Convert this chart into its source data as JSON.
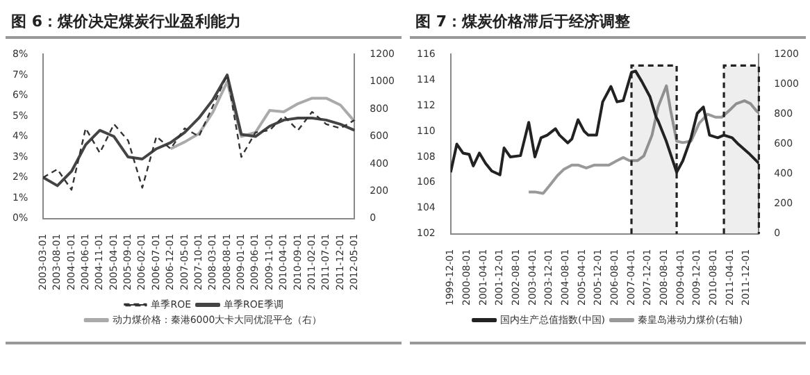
{
  "chart_data": [
    {
      "type": "line",
      "title": "图 6：煤价决定煤炭行业盈利能力",
      "categories": [
        "2003-03-01",
        "2003-08-01",
        "2004-01-01",
        "2004-06-01",
        "2004-11-01",
        "2005-04-01",
        "2005-09-01",
        "2006-02-01",
        "2006-07-01",
        "2006-12-01",
        "2007-05-01",
        "2007-10-01",
        "2008-03-01",
        "2008-08-01",
        "2009-01-01",
        "2009-06-01",
        "2009-11-01",
        "2010-04-01",
        "2010-09-01",
        "2011-02-01",
        "2011-07-01",
        "2011-12-01",
        "2012-05-01"
      ],
      "series": [
        {
          "name": "单季ROE",
          "color": "#333333",
          "line_style": "dashed",
          "values": [
            2.0,
            2.4,
            1.4,
            4.4,
            3.2,
            4.6,
            3.8,
            1.5,
            4.0,
            3.4,
            4.4,
            4.0,
            5.5,
            7.0,
            3.0,
            4.2,
            4.3,
            5.0,
            4.3,
            5.2,
            4.6,
            4.4,
            4.8
          ]
        },
        {
          "name": "单季ROE季调",
          "color": "#444444",
          "line_style": "solid",
          "values": [
            2.0,
            1.6,
            2.3,
            3.6,
            4.3,
            4.0,
            3.0,
            2.9,
            3.4,
            3.7,
            4.2,
            4.9,
            5.8,
            7.0,
            4.1,
            4.0,
            4.5,
            4.8,
            4.9,
            4.9,
            4.8,
            4.6,
            4.3
          ]
        },
        {
          "name": "动力煤价格：秦港6000大卡大同优混平仓（右）",
          "color": "#aaaaaa",
          "line_style": "solid",
          "axis": "y2",
          "values": [
            null,
            null,
            null,
            null,
            null,
            null,
            null,
            null,
            null,
            510,
            560,
            620,
            780,
            1000,
            600,
            630,
            790,
            780,
            840,
            880,
            880,
            830,
            710
          ]
        }
      ],
      "ylim": [
        0,
        8
      ],
      "yticks": [
        {
          "value": 0,
          "label": "0%"
        },
        {
          "value": 1,
          "label": "1%"
        },
        {
          "value": 2,
          "label": "2%"
        },
        {
          "value": 3,
          "label": "3%"
        },
        {
          "value": 4,
          "label": "4%"
        },
        {
          "value": 5,
          "label": "5%"
        },
        {
          "value": 6,
          "label": "6%"
        },
        {
          "value": 7,
          "label": "7%"
        },
        {
          "value": 8,
          "label": "8%"
        }
      ],
      "y2lim": [
        0,
        1200
      ],
      "y2ticks": [
        0,
        200,
        400,
        600,
        800,
        1000,
        1200
      ],
      "grid": false,
      "legend": "bottom",
      "marker": "none"
    },
    {
      "type": "line",
      "title": "图 7：煤炭价格滞后于经济调整",
      "xlim": [
        "1999-12",
        "2012-06"
      ],
      "xticks": [
        {
          "value": "1999-12",
          "label": "1999-12-01"
        },
        {
          "value": "2000-08",
          "label": "2000-08-01"
        },
        {
          "value": "2001-04",
          "label": "2001-04-01"
        },
        {
          "value": "2001-12",
          "label": "2001-12-01"
        },
        {
          "value": "2002-08",
          "label": "2002-08-01"
        },
        {
          "value": "2003-04",
          "label": "2003-04-01"
        },
        {
          "value": "2003-12",
          "label": "2003-12-01"
        },
        {
          "value": "2004-08",
          "label": "2004-08-01"
        },
        {
          "value": "2005-04",
          "label": "2005-04-01"
        },
        {
          "value": "2005-12",
          "label": "2005-12-01"
        },
        {
          "value": "2006-08",
          "label": "2006-08-01"
        },
        {
          "value": "2007-04",
          "label": "2007-04-01"
        },
        {
          "value": "2007-12",
          "label": "2007-12-01"
        },
        {
          "value": "2008-08",
          "label": "2008-08-01"
        },
        {
          "value": "2009-04",
          "label": "2009-04-01"
        },
        {
          "value": "2009-12",
          "label": "2009-12-01"
        },
        {
          "value": "2010-08",
          "label": "2010-08-01"
        },
        {
          "value": "2011-04",
          "label": "2011-04-01"
        },
        {
          "value": "2011-12",
          "label": "2011-12-01"
        }
      ],
      "series": [
        {
          "name": "国内生产总值指数(中国)",
          "color": "#222222",
          "line_style": "solid",
          "x": [
            "1999-12",
            "2000-03",
            "2000-06",
            "2000-09",
            "2000-11",
            "2001-02",
            "2001-05",
            "2001-08",
            "2001-12",
            "2002-02",
            "2002-05",
            "2002-10",
            "2003-02",
            "2003-05",
            "2003-08",
            "2003-11",
            "2004-03",
            "2004-05",
            "2004-09",
            "2004-11",
            "2005-02",
            "2005-05",
            "2005-07",
            "2005-11",
            "2006-02",
            "2006-06",
            "2006-09",
            "2006-12",
            "2007-04",
            "2007-06",
            "2007-09",
            "2008-01",
            "2008-04",
            "2008-05",
            "2008-09",
            "2009-02",
            "2009-05",
            "2009-09",
            "2009-12",
            "2010-03",
            "2010-06",
            "2010-10",
            "2011-01",
            "2011-05",
            "2011-08",
            "2012-01",
            "2012-06"
          ],
          "values": [
            106.8,
            109.0,
            108.3,
            108.2,
            107.3,
            108.3,
            107.5,
            106.9,
            106.6,
            108.7,
            108.0,
            108.1,
            110.7,
            108.0,
            109.5,
            109.7,
            110.2,
            109.7,
            109.1,
            109.4,
            110.9,
            110.0,
            109.7,
            109.7,
            112.3,
            113.5,
            112.3,
            112.4,
            114.6,
            114.7,
            113.9,
            112.7,
            111.1,
            110.8,
            109.2,
            106.8,
            107.7,
            109.5,
            111.4,
            111.9,
            109.7,
            109.5,
            109.7,
            109.5,
            109.0,
            108.3,
            107.5
          ]
        },
        {
          "name": "秦皇岛港动力煤价(右轴)",
          "color": "#999999",
          "line_style": "solid",
          "axis": "y2",
          "x": [
            "2003-02",
            "2003-05",
            "2003-09",
            "2003-12",
            "2004-04",
            "2004-07",
            "2004-11",
            "2005-02",
            "2005-06",
            "2005-10",
            "2006-01",
            "2006-05",
            "2006-09",
            "2006-12",
            "2007-03",
            "2007-07",
            "2007-10",
            "2008-02",
            "2008-05",
            "2008-09",
            "2008-11",
            "2009-02",
            "2009-05",
            "2009-09",
            "2010-01",
            "2010-05",
            "2010-09",
            "2010-12",
            "2011-04",
            "2011-07",
            "2011-11",
            "2012-02",
            "2012-05",
            "2012-06"
          ],
          "values": [
            280,
            280,
            270,
            320,
            390,
            430,
            460,
            460,
            440,
            460,
            460,
            460,
            490,
            510,
            490,
            490,
            520,
            660,
            850,
            990,
            830,
            620,
            610,
            620,
            740,
            800,
            780,
            780,
            830,
            870,
            890,
            870,
            820,
            810
          ]
        }
      ],
      "ylim": [
        102,
        116
      ],
      "yticks": [
        102,
        104,
        106,
        108,
        110,
        112,
        114,
        116
      ],
      "y2lim": [
        0,
        1200
      ],
      "y2ticks": [
        0,
        200,
        400,
        600,
        800,
        1000,
        1200
      ],
      "bands": [
        {
          "axis": "x",
          "from": "2007-04",
          "to": "2009-02",
          "color": "#222222"
        },
        {
          "axis": "x",
          "from": "2011-01",
          "to": "2012-06",
          "color": "#222222"
        }
      ],
      "grid": false,
      "legend": "bottom",
      "marker": "none"
    }
  ]
}
